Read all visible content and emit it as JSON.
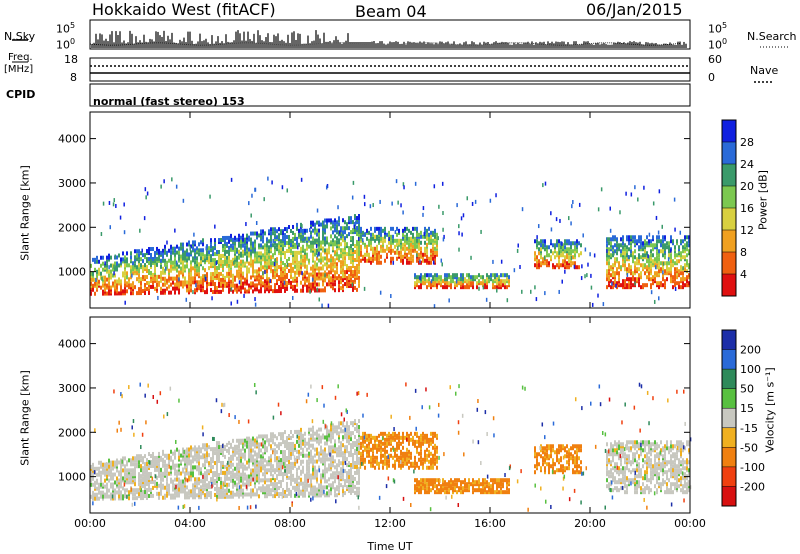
{
  "header": {
    "station": "Hokkaido West (fitACF)",
    "beam": "Beam 04",
    "date": "06/Jan/2015"
  },
  "noise_panel": {
    "left_label": "N.Sky",
    "right_label": "N.Search",
    "tick_top": "10^5",
    "tick_bottom": "10^0"
  },
  "freq_panel": {
    "left_label_1": "Freq.",
    "left_label_2": "[MHz]",
    "right_label": "Nave",
    "left_ticks": [
      "18",
      "8"
    ],
    "right_ticks": [
      "60",
      "0"
    ]
  },
  "cpid": {
    "label": "CPID",
    "value": "normal (fast stereo) 153"
  },
  "chart_data": [
    {
      "type": "heatmap",
      "name": "power",
      "ylabel": "Slant Range [km]",
      "ylim": [
        180,
        4600
      ],
      "yticks": [
        "1000",
        "2000",
        "3000",
        "4000"
      ],
      "xticks": [
        "00:00",
        "04:00",
        "08:00",
        "12:00",
        "16:00",
        "20:00",
        "00:00"
      ],
      "colorbar_label": "Power [dB]",
      "colorbar_ticks": [
        "4",
        "8",
        "12",
        "16",
        "20",
        "24",
        "28"
      ],
      "colorbar_colors": [
        "#1020e0",
        "#2a6ad8",
        "#3a9a6a",
        "#7cc850",
        "#d8d040",
        "#f0a020",
        "#f06010",
        "#e01010"
      ]
    },
    {
      "type": "heatmap",
      "name": "velocity",
      "ylabel": "Slant Range [km]",
      "ylim": [
        180,
        4600
      ],
      "yticks": [
        "1000",
        "2000",
        "3000",
        "4000"
      ],
      "xticks": [
        "00:00",
        "04:00",
        "08:00",
        "12:00",
        "16:00",
        "20:00",
        "00:00"
      ],
      "xlabel": "Time UT",
      "colorbar_label": "Velocity [m s⁻¹]",
      "colorbar_ticks": [
        "200",
        "100",
        "50",
        "15",
        "-15",
        "-50",
        "-100",
        "-200"
      ],
      "colorbar_colors": [
        "#1c2ea8",
        "#2a6ad8",
        "#2e8a5a",
        "#58c040",
        "#c8c8c0",
        "#f0b020",
        "#f08010",
        "#f04010",
        "#d81010"
      ]
    }
  ]
}
